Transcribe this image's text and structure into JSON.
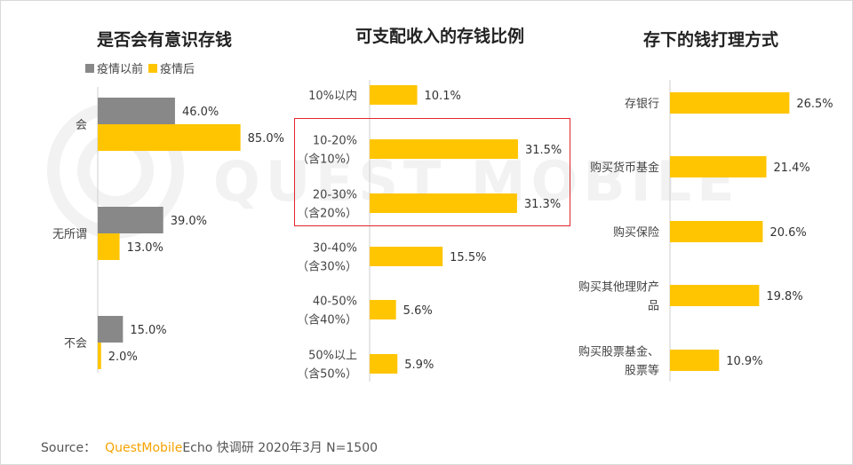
{
  "colors": {
    "before": "#888888",
    "after": "#ffc500",
    "highlight": "#e0262b",
    "brand": "#f5a300"
  },
  "source": {
    "prefix": "Source：",
    "brand": "QuestMobile",
    "suffix": "Echo 快调研  2020年3月  N=1500"
  },
  "watermark": "QUEST MOBILE",
  "chart_data": [
    {
      "type": "bar",
      "orientation": "horizontal",
      "title": "是否会有意识存钱",
      "legend": [
        "疫情以前",
        "疫情后"
      ],
      "legend_position": "top",
      "categories": [
        "会",
        "无所谓",
        "不会"
      ],
      "series": [
        {
          "name": "疫情以前",
          "values": [
            46.0,
            39.0,
            15.0
          ],
          "labels": [
            "46.0%",
            "39.0%",
            "15.0%"
          ]
        },
        {
          "name": "疫情后",
          "values": [
            85.0,
            13.0,
            2.0
          ],
          "labels": [
            "85.0%",
            "13.0%",
            "2.0%"
          ]
        }
      ],
      "xlim": [
        0,
        100
      ]
    },
    {
      "type": "bar",
      "orientation": "horizontal",
      "title": "可支配收入的存钱比例",
      "categories": [
        [
          "10%以内"
        ],
        [
          "10-20%",
          "（含10%）"
        ],
        [
          "20-30%",
          "（含20%）"
        ],
        [
          "30-40%",
          "（含30%）"
        ],
        [
          "40-50%",
          "（含40%）"
        ],
        [
          "50%以上",
          "（含50%）"
        ]
      ],
      "values": [
        10.1,
        31.5,
        31.3,
        15.5,
        5.6,
        5.9
      ],
      "labels": [
        "10.1%",
        "31.5%",
        "31.3%",
        "15.5%",
        "5.6%",
        "5.9%"
      ],
      "highlighted": [
        1,
        2
      ],
      "xlim": [
        0,
        40
      ]
    },
    {
      "type": "bar",
      "orientation": "horizontal",
      "title": "存下的钱打理方式",
      "categories": [
        [
          "存银行"
        ],
        [
          "购买货币基金"
        ],
        [
          "购买保险"
        ],
        [
          "购买其他理财产",
          "品"
        ],
        [
          "购买股票基金、",
          "股票等"
        ]
      ],
      "values": [
        26.5,
        21.4,
        20.6,
        19.8,
        10.9
      ],
      "labels": [
        "26.5%",
        "21.4%",
        "20.6%",
        "19.8%",
        "10.9%"
      ],
      "xlim": [
        0,
        35
      ]
    }
  ]
}
